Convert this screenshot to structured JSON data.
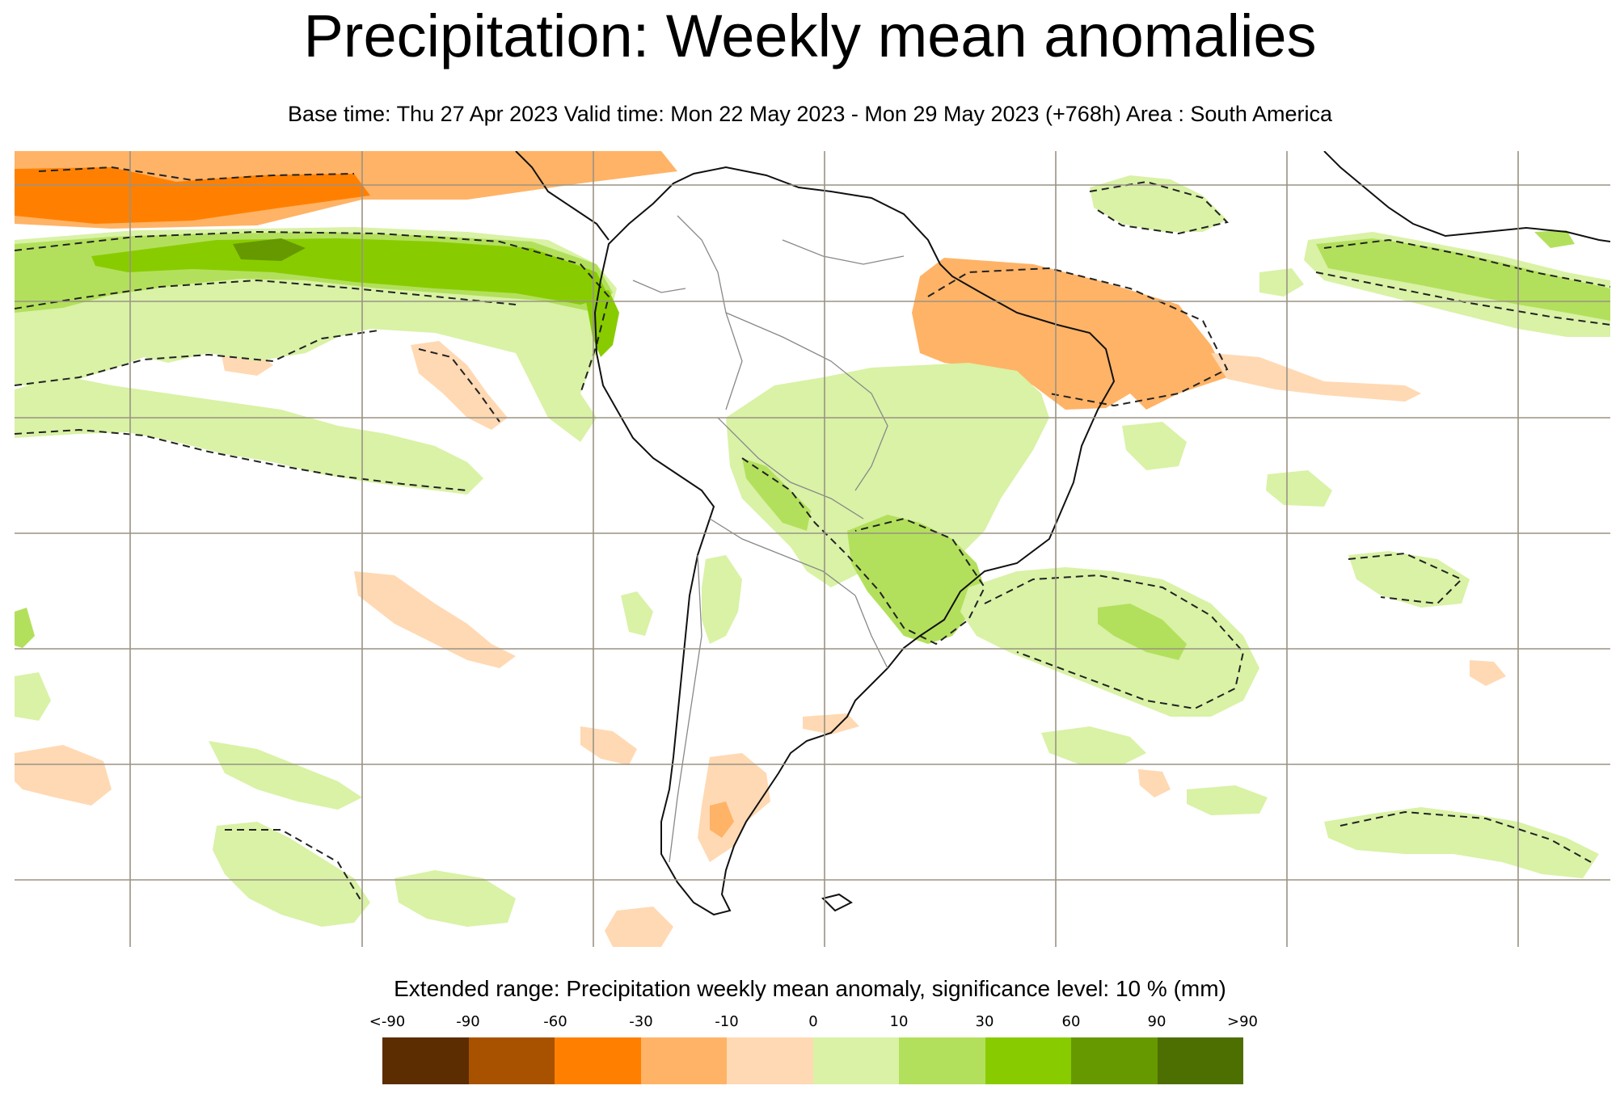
{
  "title": "Precipitation: Weekly mean anomalies",
  "subtitle": "Base time: Thu 27 Apr 2023 Valid time: Mon 22 May 2023 - Mon 29 May 2023 (+768h) Area : South America",
  "legend": {
    "title": "Extended range: Precipitation weekly mean anomaly, significance level: 10 % (mm)",
    "labels": [
      "<-90",
      "-90",
      "-60",
      "-30",
      "-10",
      "0",
      "10",
      "30",
      "60",
      "90",
      ">90"
    ],
    "colors": [
      "#5c2d00",
      "#a85200",
      "#ff8000",
      "#ffb366",
      "#ffd9b3",
      "#d9f2a6",
      "#b3e05c",
      "#88cc00",
      "#669900",
      "#4d6e00"
    ]
  },
  "map": {
    "area": "South America",
    "colors": {
      "dry_strong": "#ff8000",
      "dry_moderate": "#ffb366",
      "dry_light": "#ffd9b3",
      "wet_light": "#d9f2a6",
      "wet_moderate": "#b3e05c",
      "wet_strong": "#88cc00",
      "wet_very_strong": "#669900",
      "coastline": "#111111",
      "border": "#888888",
      "grid": "#9a9384",
      "significance_contour": "#222222"
    }
  }
}
